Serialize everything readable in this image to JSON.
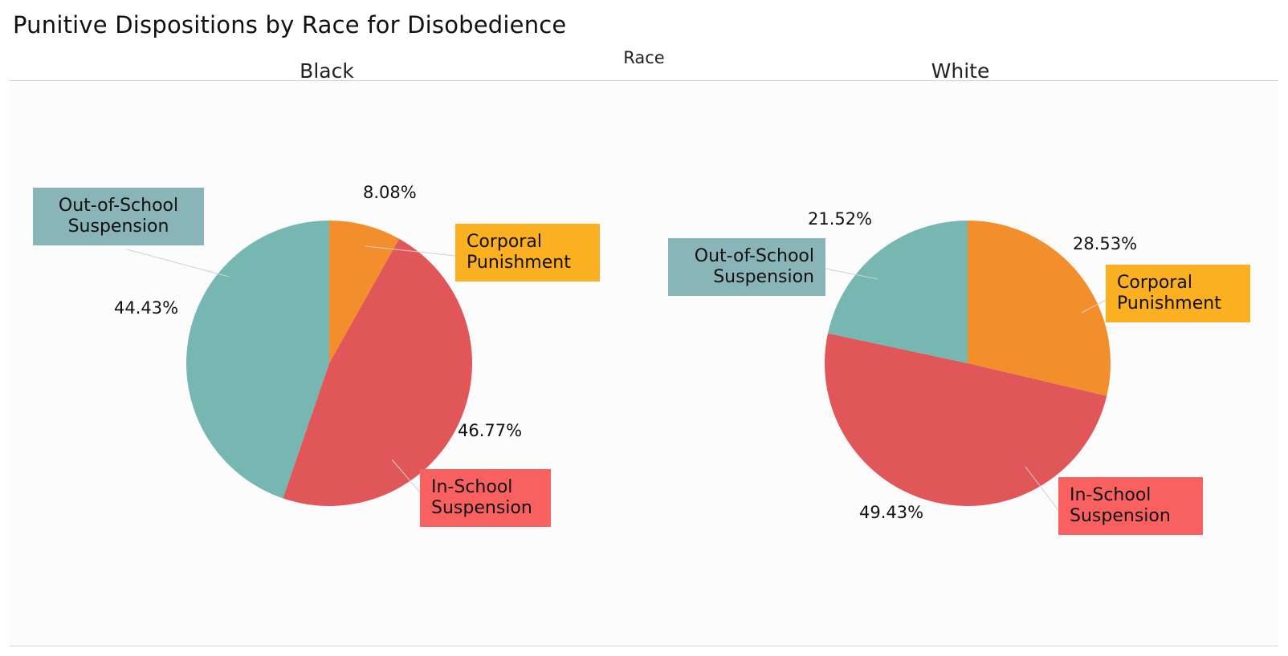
{
  "title": "Punitive Dispositions by Race for Disobedience",
  "facet_header": "Race",
  "colors": {
    "corporal_slice": "#f28e2b",
    "in_school_slice": "#e15759",
    "out_of_school_slice": "#76b7b2",
    "corporal_callout": "#fbb021",
    "in_school_callout": "#f8615f",
    "out_of_school_callout": "#89b4b8"
  },
  "chart_data": [
    {
      "type": "pie",
      "facet": "Black",
      "slices": [
        {
          "label": "Corporal Punishment",
          "value": 8.08,
          "value_label": "8.08%"
        },
        {
          "label": "In-School Suspension",
          "value": 46.77,
          "value_label": "46.77%"
        },
        {
          "label": "Out-of-School Suspension",
          "value": 44.43,
          "value_label": "44.43%"
        }
      ],
      "callouts": {
        "corporal": [
          "Corporal",
          "Punishment"
        ],
        "in_school": [
          "In-School",
          "Suspension"
        ],
        "out_of_school": [
          "Out-of-School",
          "Suspension"
        ]
      }
    },
    {
      "type": "pie",
      "facet": "White",
      "slices": [
        {
          "label": "Corporal Punishment",
          "value": 28.53,
          "value_label": "28.53%"
        },
        {
          "label": "In-School Suspension",
          "value": 49.43,
          "value_label": "49.43%"
        },
        {
          "label": "Out-of-School Suspension",
          "value": 21.52,
          "value_label": "21.52%"
        }
      ],
      "callouts": {
        "corporal": [
          "Corporal",
          "Punishment"
        ],
        "in_school": [
          "In-School",
          "Suspension"
        ],
        "out_of_school": [
          "Out-of-School",
          "Suspension"
        ]
      }
    }
  ]
}
